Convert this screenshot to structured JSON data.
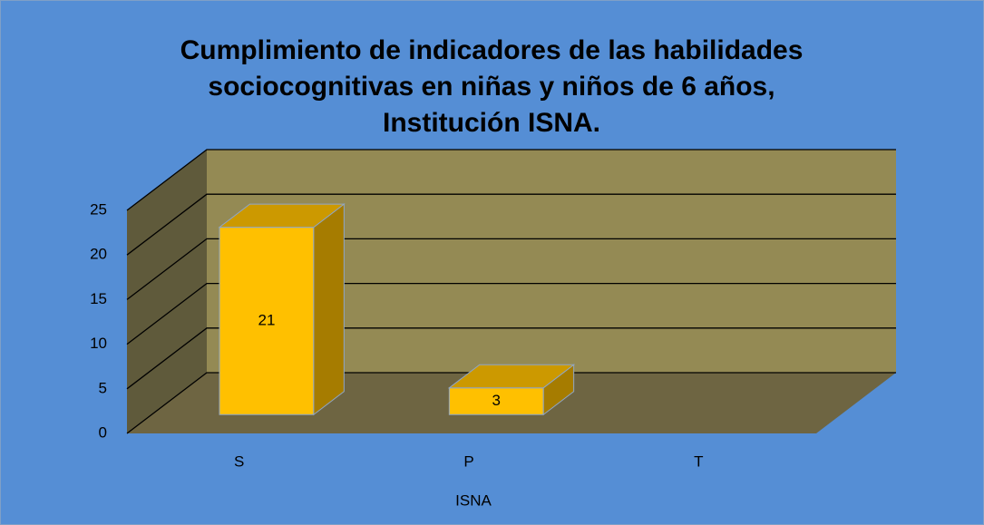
{
  "chart_data": {
    "type": "bar3d",
    "title": "Cumplimiento de indicadores de las habilidades sociocognitivas en niñas y niños de 6 años, Institución ISNA.",
    "categories": [
      "S",
      "P",
      "T"
    ],
    "values": [
      21,
      3,
      null
    ],
    "color": "#ffc000",
    "x_label": "ISNA",
    "ylim": [
      0,
      25
    ],
    "yticks": [
      0,
      5,
      10,
      15,
      20,
      25
    ],
    "grid": true
  }
}
